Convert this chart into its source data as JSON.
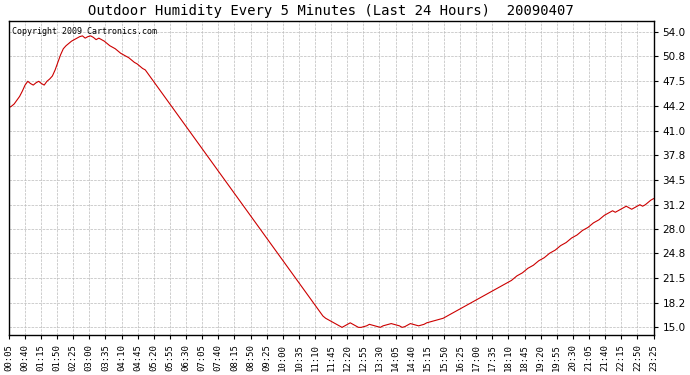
{
  "title": "Outdoor Humidity Every 5 Minutes (Last 24 Hours)  20090407",
  "copyright_text": "Copyright 2009 Cartronics.com",
  "line_color": "#cc0000",
  "background_color": "#ffffff",
  "grid_color": "#bbbbbb",
  "yticks": [
    15.0,
    18.2,
    21.5,
    24.8,
    28.0,
    31.2,
    34.5,
    37.8,
    41.0,
    44.2,
    47.5,
    50.8,
    54.0
  ],
  "ylim": [
    14.0,
    55.5
  ],
  "xtick_labels": [
    "00:05",
    "00:40",
    "01:15",
    "01:50",
    "02:25",
    "03:00",
    "03:35",
    "04:10",
    "04:45",
    "05:20",
    "05:55",
    "06:30",
    "07:05",
    "07:40",
    "08:15",
    "08:50",
    "09:25",
    "10:00",
    "10:35",
    "11:10",
    "11:45",
    "12:20",
    "12:55",
    "13:30",
    "14:05",
    "14:40",
    "15:15",
    "15:50",
    "16:25",
    "17:00",
    "17:35",
    "18:10",
    "18:45",
    "19:20",
    "19:55",
    "20:30",
    "21:05",
    "21:40",
    "22:15",
    "22:50",
    "23:25"
  ],
  "humidity_values": [
    44.0,
    44.2,
    44.5,
    45.0,
    45.5,
    46.2,
    47.0,
    47.5,
    47.2,
    47.0,
    47.3,
    47.5,
    47.2,
    47.0,
    47.5,
    47.8,
    48.2,
    49.0,
    50.0,
    51.0,
    51.8,
    52.2,
    52.5,
    52.8,
    53.0,
    53.2,
    53.4,
    53.5,
    53.2,
    53.4,
    53.5,
    53.3,
    53.0,
    53.2,
    53.0,
    52.8,
    52.5,
    52.2,
    52.0,
    51.8,
    51.5,
    51.2,
    51.0,
    50.8,
    50.6,
    50.3,
    50.0,
    49.8,
    49.5,
    49.2,
    49.0,
    48.5,
    48.0,
    47.5,
    47.0,
    46.5,
    46.0,
    45.5,
    45.0,
    44.5,
    44.0,
    43.5,
    43.0,
    42.5,
    42.0,
    41.5,
    41.0,
    40.5,
    40.0,
    39.5,
    39.0,
    38.5,
    38.0,
    37.5,
    37.0,
    36.5,
    36.0,
    35.5,
    35.0,
    34.5,
    34.0,
    33.5,
    33.0,
    32.5,
    32.0,
    31.5,
    31.0,
    30.5,
    30.0,
    29.5,
    29.0,
    28.5,
    28.0,
    27.5,
    27.0,
    26.5,
    26.0,
    25.5,
    25.0,
    24.5,
    24.0,
    23.5,
    23.0,
    22.5,
    22.0,
    21.5,
    21.0,
    20.5,
    20.0,
    19.5,
    19.0,
    18.5,
    18.0,
    17.5,
    17.0,
    16.5,
    16.2,
    16.0,
    15.8,
    15.6,
    15.4,
    15.2,
    15.0,
    15.2,
    15.4,
    15.6,
    15.4,
    15.2,
    15.0,
    15.0,
    15.1,
    15.2,
    15.4,
    15.3,
    15.2,
    15.1,
    15.0,
    15.2,
    15.3,
    15.4,
    15.5,
    15.4,
    15.3,
    15.2,
    15.0,
    15.1,
    15.3,
    15.5,
    15.4,
    15.3,
    15.2,
    15.3,
    15.4,
    15.6,
    15.7,
    15.8,
    15.9,
    16.0,
    16.1,
    16.2,
    16.4,
    16.6,
    16.8,
    17.0,
    17.2,
    17.4,
    17.6,
    17.8,
    18.0,
    18.2,
    18.4,
    18.6,
    18.8,
    19.0,
    19.2,
    19.4,
    19.6,
    19.8,
    20.0,
    20.2,
    20.4,
    20.6,
    20.8,
    21.0,
    21.2,
    21.5,
    21.8,
    22.0,
    22.2,
    22.5,
    22.8,
    23.0,
    23.2,
    23.5,
    23.8,
    24.0,
    24.2,
    24.5,
    24.8,
    25.0,
    25.2,
    25.5,
    25.8,
    26.0,
    26.2,
    26.5,
    26.8,
    27.0,
    27.2,
    27.5,
    27.8,
    28.0,
    28.2,
    28.5,
    28.8,
    29.0,
    29.2,
    29.5,
    29.8,
    30.0,
    30.2,
    30.4,
    30.2,
    30.4,
    30.6,
    30.8,
    31.0,
    30.8,
    30.6,
    30.8,
    31.0,
    31.2,
    31.0,
    31.2,
    31.5,
    31.8,
    32.0
  ]
}
